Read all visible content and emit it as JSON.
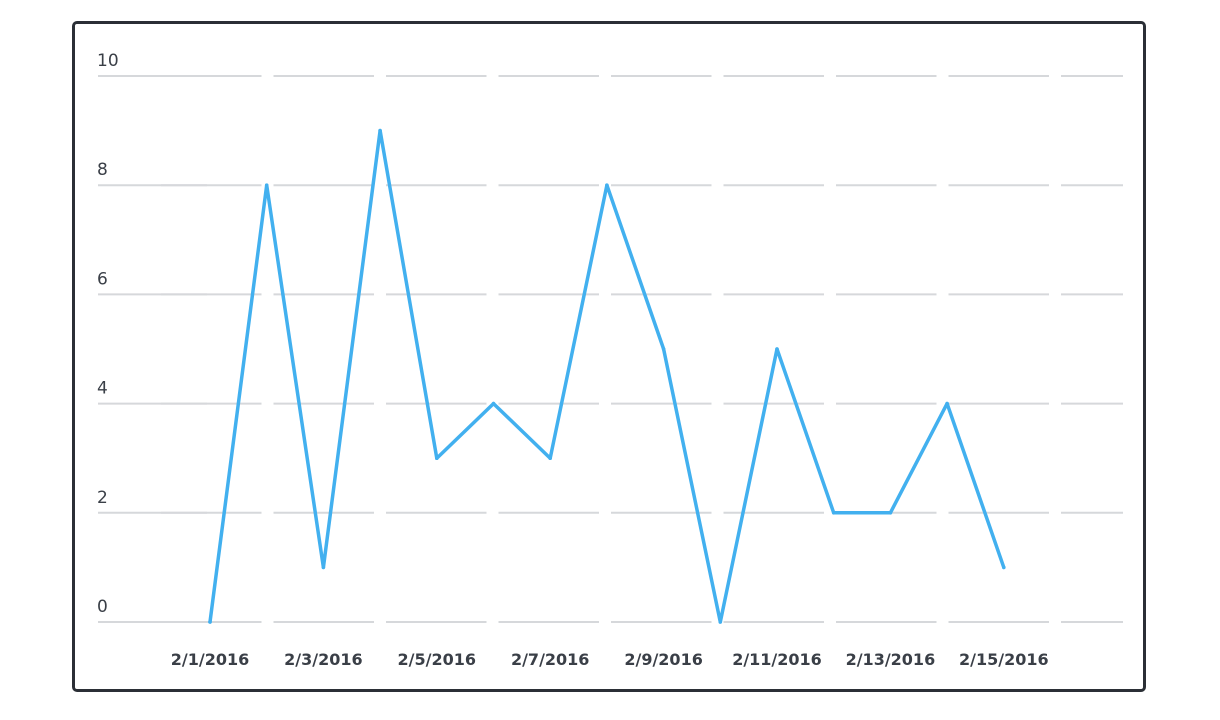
{
  "chart_data": {
    "type": "line",
    "x": [
      "2/1/2016",
      "2/2/2016",
      "2/3/2016",
      "2/4/2016",
      "2/5/2016",
      "2/6/2016",
      "2/7/2016",
      "2/8/2016",
      "2/9/2016",
      "2/10/2016",
      "2/11/2016",
      "2/12/2016",
      "2/13/2016",
      "2/14/2016",
      "2/15/2016"
    ],
    "x_tick_labels": [
      "2/1/2016",
      "2/3/2016",
      "2/5/2016",
      "2/7/2016",
      "2/9/2016",
      "2/11/2016",
      "2/13/2016",
      "2/15/2016"
    ],
    "series": [
      {
        "values": [
          0,
          8,
          1,
          9,
          3,
          4,
          3,
          8,
          5,
          0,
          5,
          2,
          2,
          4,
          1
        ],
        "color": "#42b0ef"
      }
    ],
    "y_ticks": [
      0,
      2,
      4,
      6,
      8,
      10
    ],
    "ylim": [
      0,
      10
    ],
    "grid": true,
    "title": "",
    "xlabel": "",
    "ylabel": "",
    "colors": {
      "line": "#42b0ef",
      "grid": "#d6d8db",
      "border": "#2b2f36",
      "text": "#3a3f47"
    }
  }
}
